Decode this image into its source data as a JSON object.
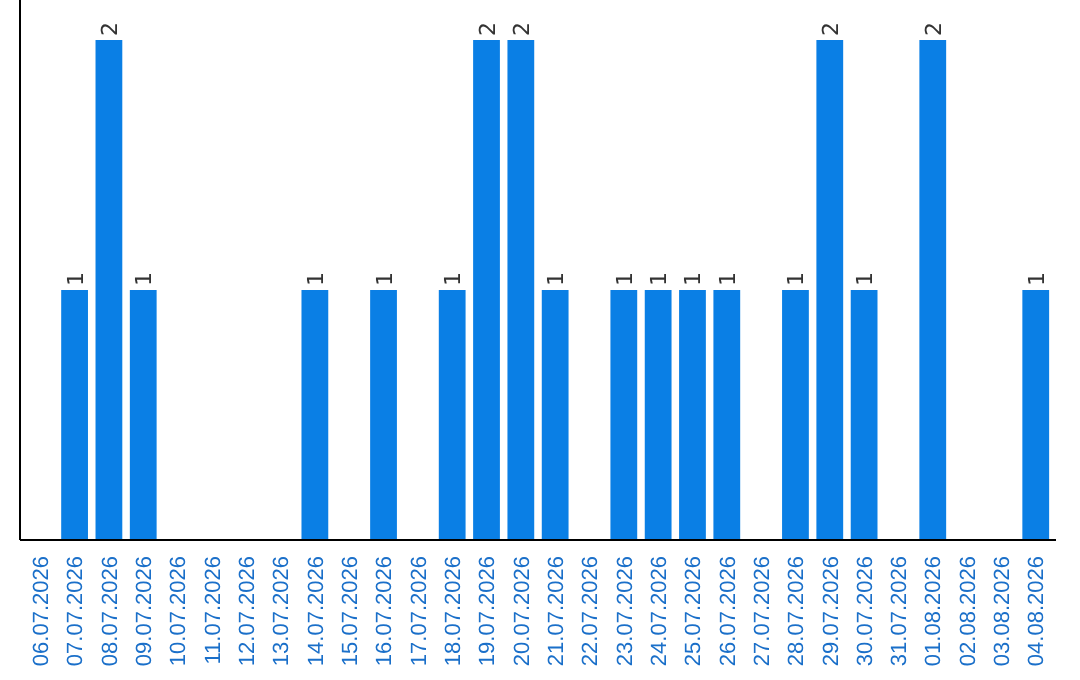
{
  "chart_data": {
    "type": "bar",
    "categories": [
      "06.07.2026",
      "07.07.2026",
      "08.07.2026",
      "09.07.2026",
      "10.07.2026",
      "11.07.2026",
      "12.07.2026",
      "13.07.2026",
      "14.07.2026",
      "15.07.2026",
      "16.07.2026",
      "17.07.2026",
      "18.07.2026",
      "19.07.2026",
      "20.07.2026",
      "21.07.2026",
      "22.07.2026",
      "23.07.2026",
      "24.07.2026",
      "25.07.2026",
      "26.07.2026",
      "27.07.2026",
      "28.07.2026",
      "29.07.2026",
      "30.07.2026",
      "31.07.2026",
      "01.08.2026",
      "02.08.2026",
      "03.08.2026",
      "04.08.2026"
    ],
    "values": [
      0,
      1,
      2,
      1,
      0,
      0,
      0,
      0,
      1,
      0,
      1,
      0,
      1,
      2,
      2,
      1,
      0,
      1,
      1,
      1,
      1,
      0,
      1,
      2,
      1,
      0,
      2,
      0,
      0,
      1
    ],
    "value_labels": [
      null,
      "1",
      "2",
      "1",
      null,
      null,
      null,
      null,
      "1",
      null,
      "1",
      null,
      "1",
      "2",
      "2",
      "1",
      null,
      "1",
      "1",
      "1",
      "1",
      null,
      "1",
      "2",
      "1",
      null,
      "2",
      null,
      null,
      "1"
    ],
    "color": "#0a7fe5",
    "ylim": [
      0,
      2
    ],
    "tick_labels": "x"
  }
}
